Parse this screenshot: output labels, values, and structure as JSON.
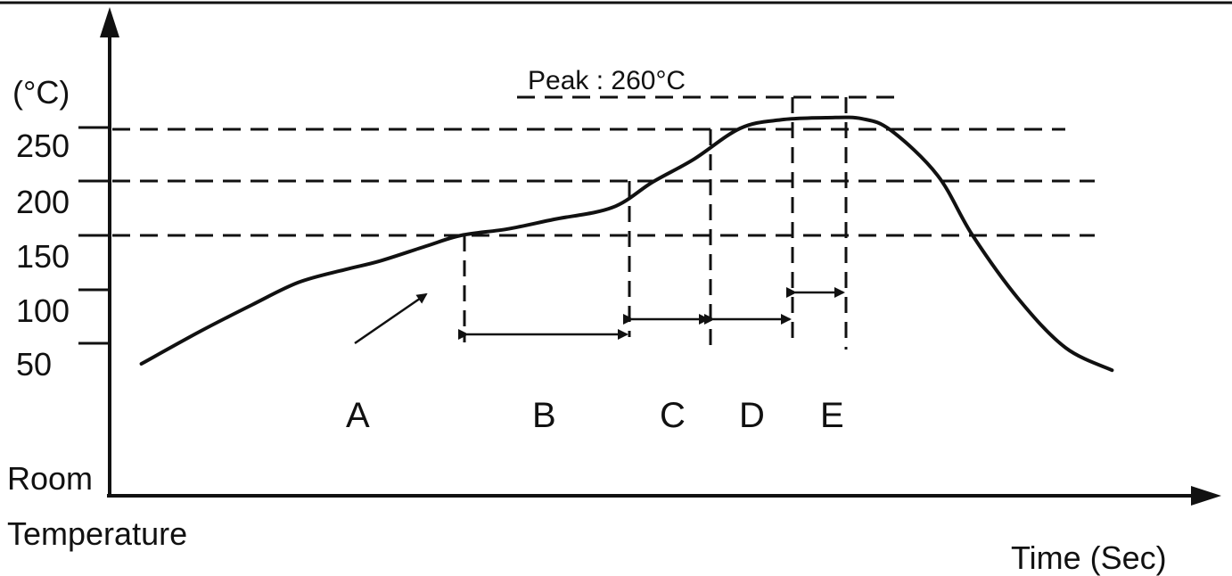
{
  "chart_data": {
    "type": "line",
    "title": "",
    "ylabel": "(°C)",
    "xlabel": "Time (Sec)",
    "y_baseline_label": [
      "Room",
      "Temperature"
    ],
    "y_ticks": [
      "250",
      "200",
      "150",
      "100",
      "50"
    ],
    "peak_label": "Peak : 260°C",
    "zones": [
      "A",
      "B",
      "C",
      "D",
      "E"
    ],
    "reference_levels": [
      150,
      200,
      250,
      260
    ],
    "series": [
      {
        "points": [
          [
            0.5,
            30
          ],
          [
            1.5,
            60
          ],
          [
            2.4,
            85
          ],
          [
            3.2,
            106
          ],
          [
            4.0,
            118
          ],
          [
            4.6,
            126
          ],
          [
            5.4,
            140
          ],
          [
            6.0,
            150
          ],
          [
            6.8,
            156
          ],
          [
            7.6,
            165
          ],
          [
            8.6,
            176
          ],
          [
            9.3,
            200
          ],
          [
            10.0,
            221
          ],
          [
            10.8,
            250
          ],
          [
            11.5,
            258
          ],
          [
            12.3,
            260
          ],
          [
            12.9,
            259
          ],
          [
            13.4,
            248
          ],
          [
            14.2,
            206
          ],
          [
            14.8,
            150
          ],
          [
            15.6,
            90
          ],
          [
            16.4,
            45
          ],
          [
            17.2,
            24
          ]
        ]
      }
    ],
    "xlim": [
      0,
      18
    ],
    "ylim": [
      20,
      290
    ],
    "grid": false
  },
  "colors": {
    "ink": "#111111",
    "background": "#ffffff"
  }
}
